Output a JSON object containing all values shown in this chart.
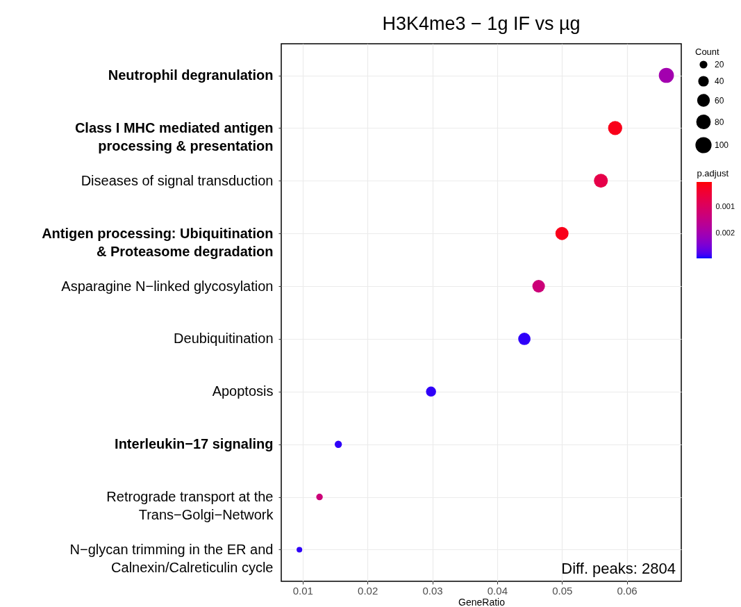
{
  "chart_data": {
    "type": "bubble",
    "orientation": "horizontal",
    "title": "H3K4me3 − 1g IF vs µg",
    "xlabel": "GeneRatio",
    "legend_title": "Count",
    "clabel": "p.adjust",
    "categories": [
      "Neutrophil degranulation",
      "Class I MHC mediated antigen\nprocessing & presentation",
      "Diseases of signal transduction",
      "Antigen processing: Ubiquitination\n& Proteasome degradation",
      "Asparagine N−linked glycosylation",
      "Deubiquitination",
      "Apoptosis",
      "Interleukin−17 signaling",
      "Retrograde transport at the\nTrans−Golgi−Network",
      "N−glycan trimming in the ER and\nCalnexin/Calreticulin cycle"
    ],
    "values": [
      0.0661,
      0.0582,
      0.056,
      0.05,
      0.0464,
      0.0442,
      0.0298,
      0.0155,
      0.0126,
      0.0095
    ],
    "sizes": [
      100,
      88,
      85,
      76,
      70,
      67,
      45,
      23,
      19,
      14
    ],
    "size_legend": [
      20,
      40,
      60,
      80,
      100
    ],
    "cvalues": [
      0.002,
      0.0002,
      0.0007,
      0.0002,
      0.0013,
      0.0029,
      0.0029,
      0.0029,
      0.0013,
      0.0029
    ],
    "clim": [
      5e-05,
      0.00297
    ],
    "cticks": [
      0.001,
      0.002
    ],
    "xlim": [
      0.0067,
      0.0684
    ],
    "xticks": [
      0.01,
      0.02,
      0.03,
      0.04,
      0.05,
      0.06
    ],
    "grid": true,
    "annotations": [
      "Diff. peaks: 2804"
    ]
  }
}
